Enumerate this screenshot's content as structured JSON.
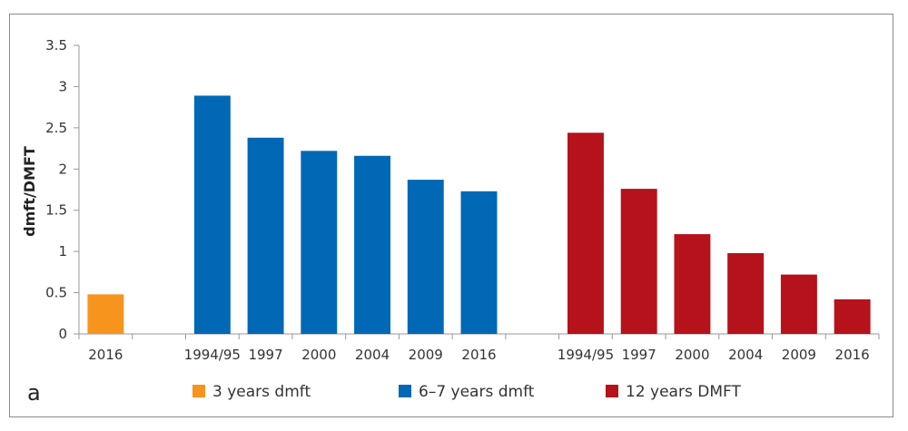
{
  "panel_label": "a",
  "chart_data": {
    "type": "bar",
    "ylabel": "dmft/DMFT",
    "xlabel": "",
    "ylim": [
      0,
      3.5
    ],
    "yticks": [
      "0",
      "0.5",
      "1",
      "1.5",
      "2",
      "2.5",
      "3",
      "3.5"
    ],
    "legend_position": "bottom",
    "groups": [
      {
        "name": "3 years dmft",
        "color": "#f7941d",
        "categories": [
          "2016"
        ],
        "values": [
          0.48
        ]
      },
      {
        "name": "6–7 years dmft",
        "color": "#0068b4",
        "categories": [
          "1994/95",
          "1997",
          "2000",
          "2004",
          "2009",
          "2016"
        ],
        "values": [
          2.89,
          2.38,
          2.22,
          2.16,
          1.87,
          1.73
        ]
      },
      {
        "name": "12 years DMFT",
        "color": "#b5121b",
        "categories": [
          "1994/95",
          "1997",
          "2000",
          "2004",
          "2009",
          "2016"
        ],
        "values": [
          2.44,
          1.76,
          1.21,
          0.98,
          0.72,
          0.42
        ]
      }
    ]
  }
}
